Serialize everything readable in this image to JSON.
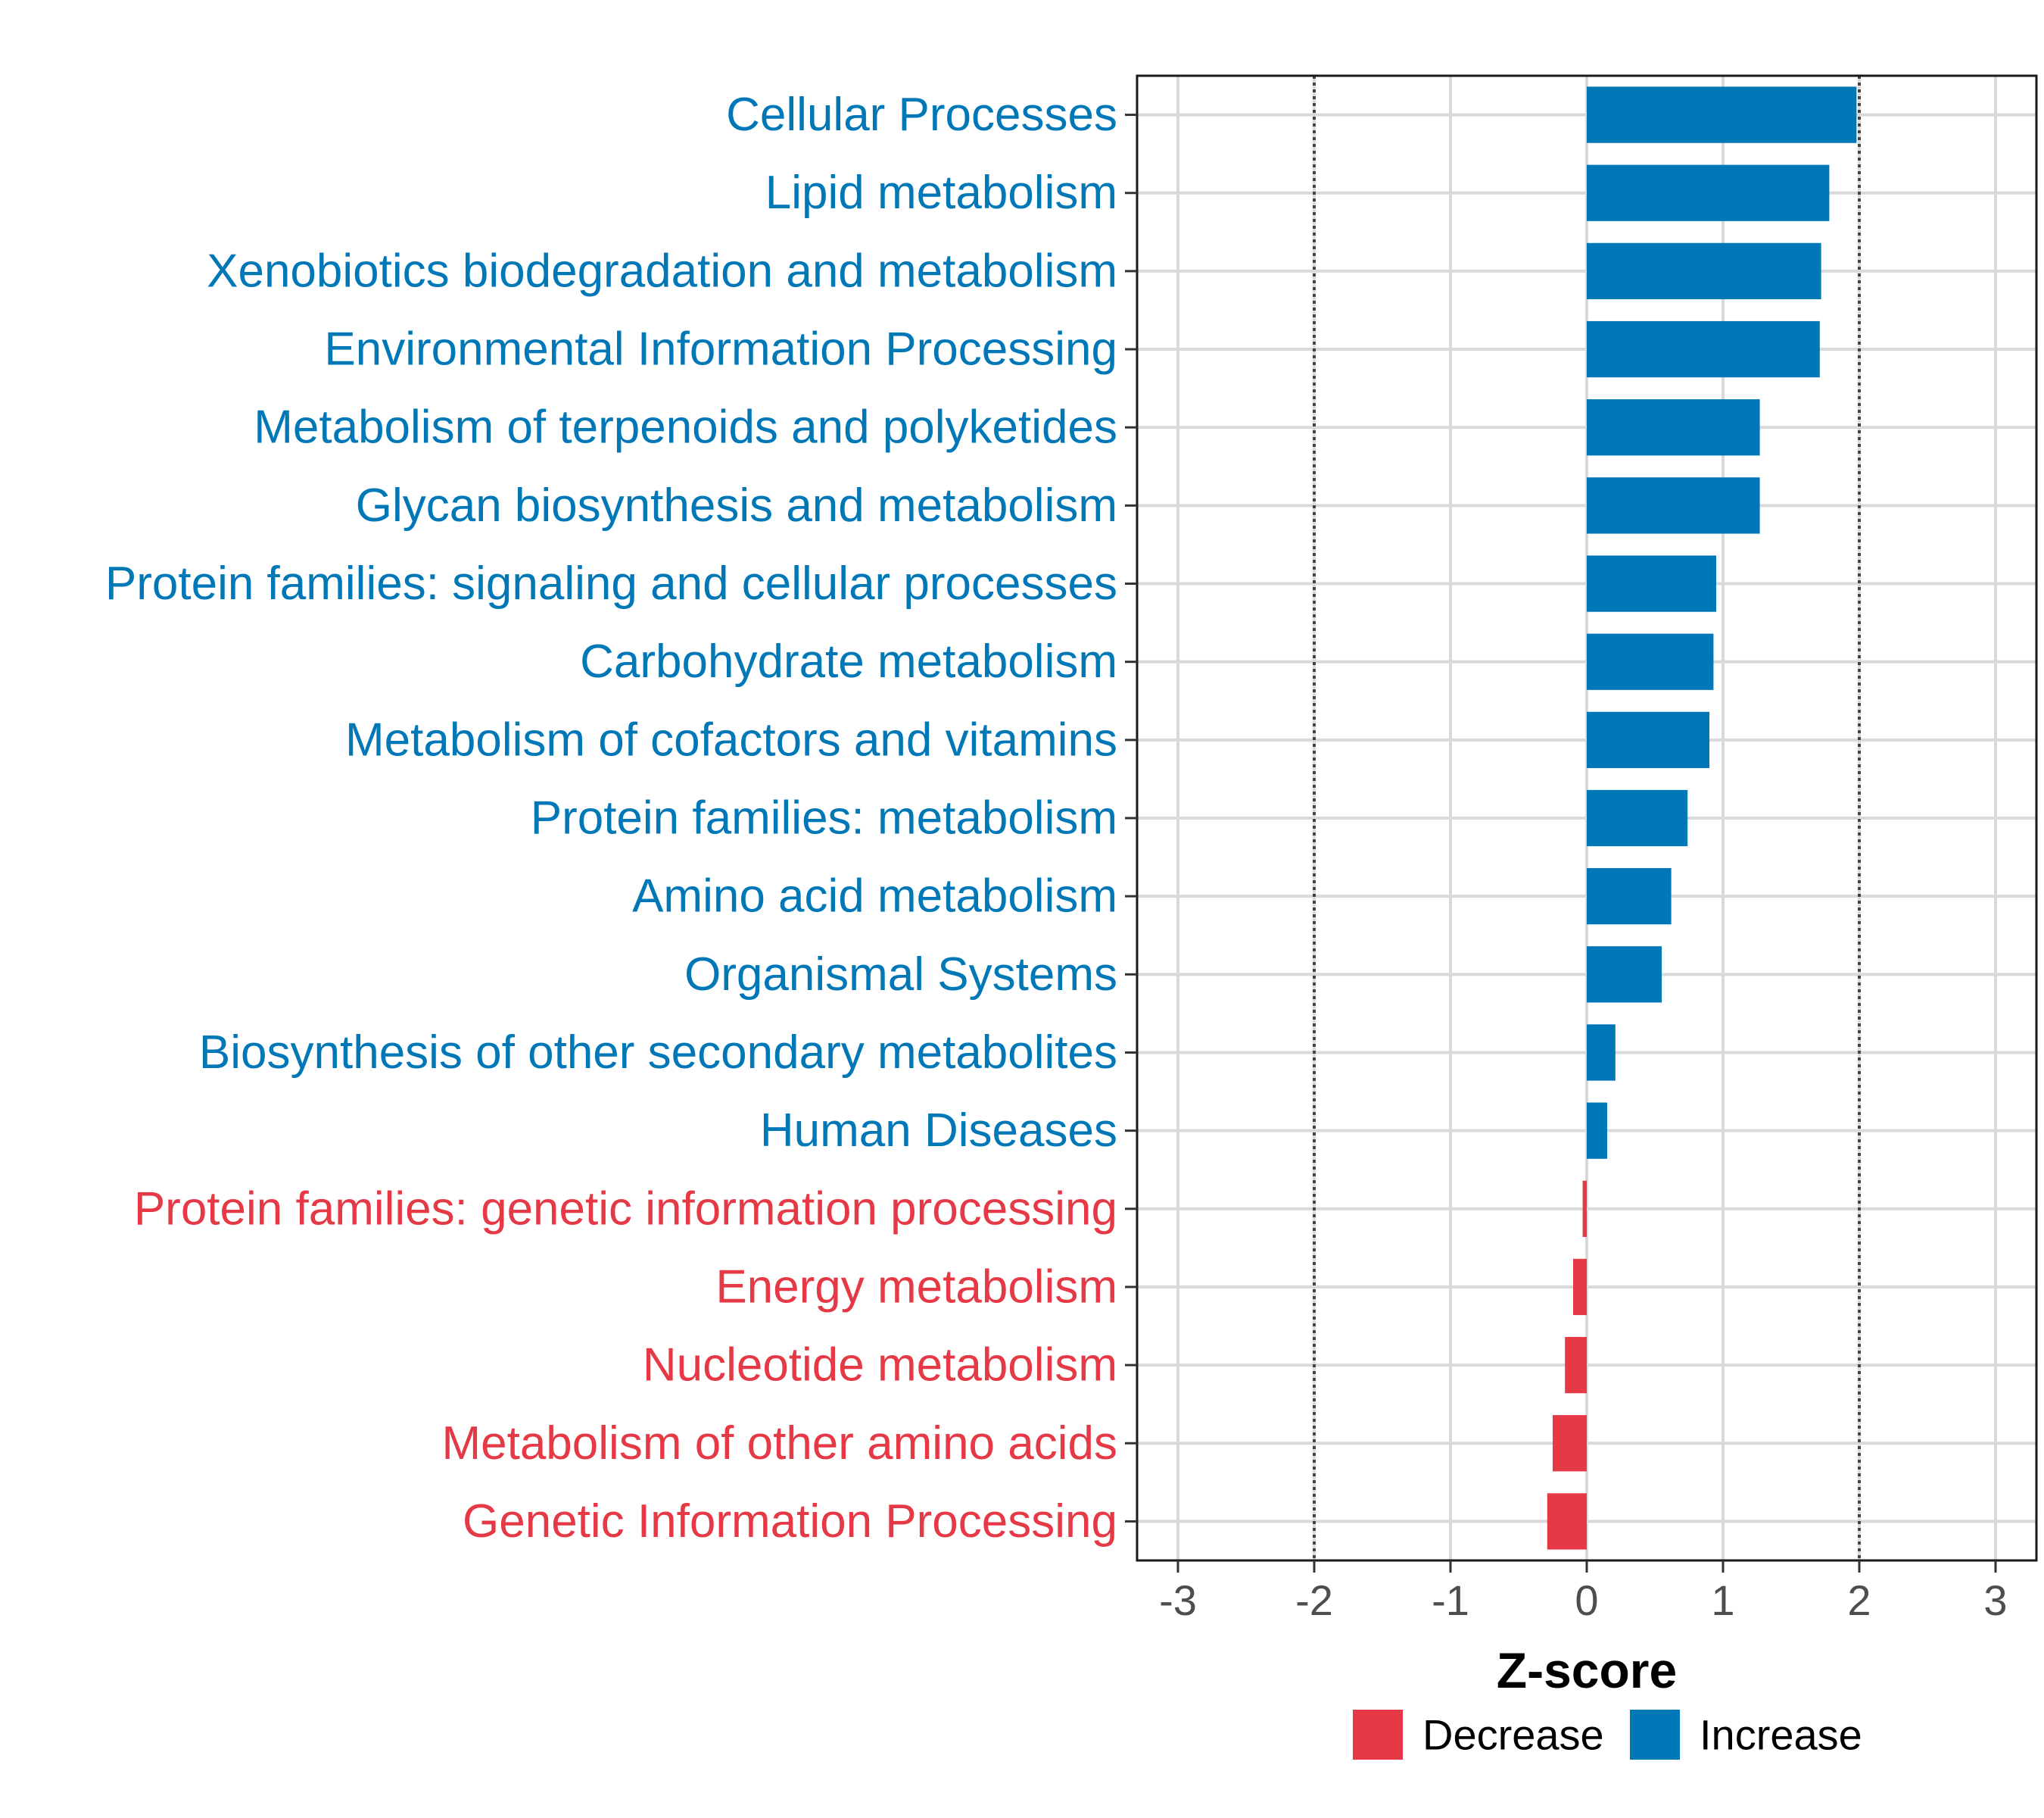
{
  "chart_data": {
    "type": "bar",
    "orientation": "horizontal",
    "xlabel": "Z-score",
    "ylabel": "",
    "xlim": [
      -3.3,
      3.3
    ],
    "xticks": [
      -3,
      -2,
      -1,
      0,
      1,
      2,
      3
    ],
    "xtick_labels": [
      "-3",
      "-2",
      "-1",
      "0",
      "1",
      "2",
      "3"
    ],
    "reference_lines": [
      -2,
      2
    ],
    "grid": true,
    "categories": [
      "Cellular Processes",
      "Lipid metabolism",
      "Xenobiotics biodegradation and metabolism",
      "Environmental Information Processing",
      "Metabolism of terpenoids and polyketides",
      "Glycan biosynthesis and metabolism",
      "Protein families: signaling and cellular processes",
      "Carbohydrate metabolism",
      "Metabolism of cofactors and vitamins",
      "Protein families: metabolism",
      "Amino acid metabolism",
      "Organismal Systems",
      "Biosynthesis of other secondary metabolites",
      "Human Diseases",
      "Protein families: genetic information processing",
      "Energy metabolism",
      "Nucleotide metabolism",
      "Metabolism of other amino acids",
      "Genetic Information Processing"
    ],
    "values": [
      1.98,
      1.78,
      1.72,
      1.71,
      1.27,
      1.27,
      0.95,
      0.93,
      0.9,
      0.74,
      0.62,
      0.55,
      0.21,
      0.15,
      -0.03,
      -0.1,
      -0.16,
      -0.25,
      -0.29
    ],
    "groups": [
      "Increase",
      "Increase",
      "Increase",
      "Increase",
      "Increase",
      "Increase",
      "Increase",
      "Increase",
      "Increase",
      "Increase",
      "Increase",
      "Increase",
      "Increase",
      "Increase",
      "Decrease",
      "Decrease",
      "Decrease",
      "Decrease",
      "Decrease"
    ],
    "legend": {
      "position": "bottom",
      "entries": [
        {
          "label": "Decrease",
          "color": "#E63946"
        },
        {
          "label": "Increase",
          "color": "#0077B6"
        }
      ]
    },
    "colors": {
      "Decrease": "#E63946",
      "Increase": "#0077B6"
    }
  }
}
